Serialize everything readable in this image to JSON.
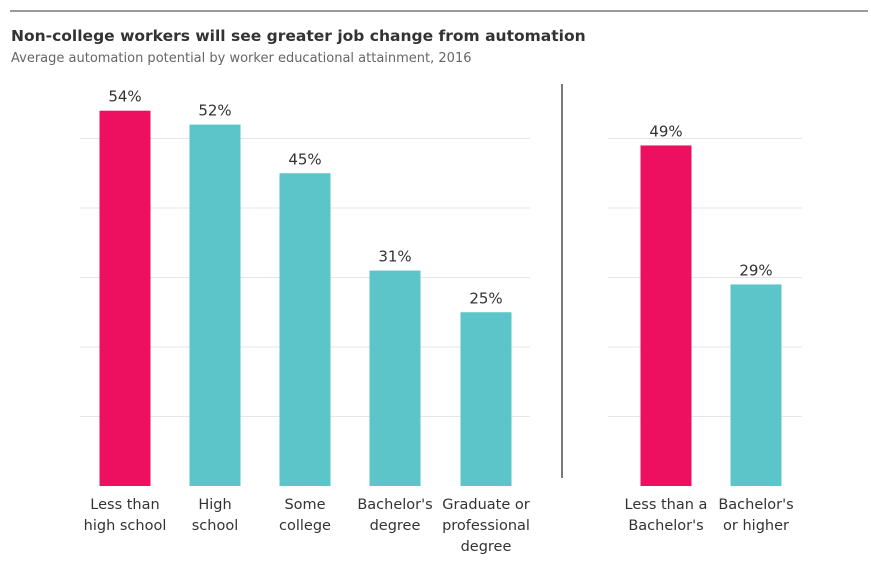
{
  "chart_data": {
    "type": "bar",
    "title": "Non-college workers will see greater job change from automation",
    "subtitle": "Average automation potential by worker educational attainment, 2016",
    "xlabel": "",
    "ylabel": "",
    "ylim": [
      0,
      60
    ],
    "grid": true,
    "legend": "none",
    "value_suffix": "%",
    "colors": {
      "highlight": "#EE1060",
      "default": "#5BC5CA",
      "grid": "#e6e6e6",
      "divider": "#222222"
    },
    "groups": [
      {
        "categories": [
          [
            "Less than",
            "high school"
          ],
          [
            "High",
            "school"
          ],
          [
            "Some",
            "college"
          ],
          [
            "Bachelor's",
            "degree"
          ],
          [
            "Graduate or",
            "professional",
            "degree"
          ]
        ],
        "values": [
          54,
          52,
          45,
          31,
          25
        ],
        "labels": [
          "54%",
          "52%",
          "45%",
          "31%",
          "25%"
        ],
        "highlight": [
          true,
          false,
          false,
          false,
          false
        ]
      },
      {
        "categories": [
          [
            "Less than a",
            "Bachelor's"
          ],
          [
            "Bachelor's",
            "or higher"
          ]
        ],
        "values": [
          49,
          29
        ],
        "labels": [
          "49%",
          "29%"
        ],
        "highlight": [
          true,
          false
        ]
      }
    ]
  }
}
